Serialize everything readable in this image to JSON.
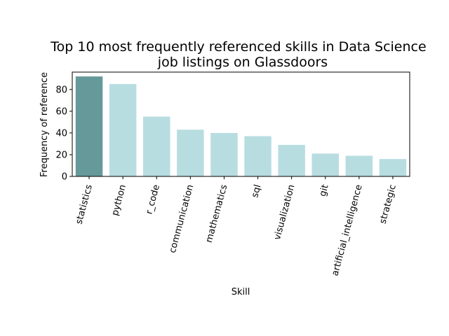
{
  "chart_data": {
    "type": "bar",
    "title": [
      "Top 10 most frequently referenced skills in Data Science",
      "job listings on Glassdoors"
    ],
    "xlabel": "Skill",
    "ylabel": "Frequency of reference",
    "categories": [
      "statistics",
      "python",
      "r_code",
      "communication",
      "mathematics",
      "sql",
      "visualization",
      "git",
      "artificial_intelligence",
      "strategic"
    ],
    "values": [
      92,
      85,
      55,
      43,
      40,
      37,
      29,
      21,
      19,
      16
    ],
    "ylim": [
      0,
      96
    ],
    "yticks": [
      0,
      20,
      40,
      60,
      80
    ],
    "grid": false,
    "colors": {
      "highlight": "#669999",
      "bar": "#b8dde1"
    }
  }
}
